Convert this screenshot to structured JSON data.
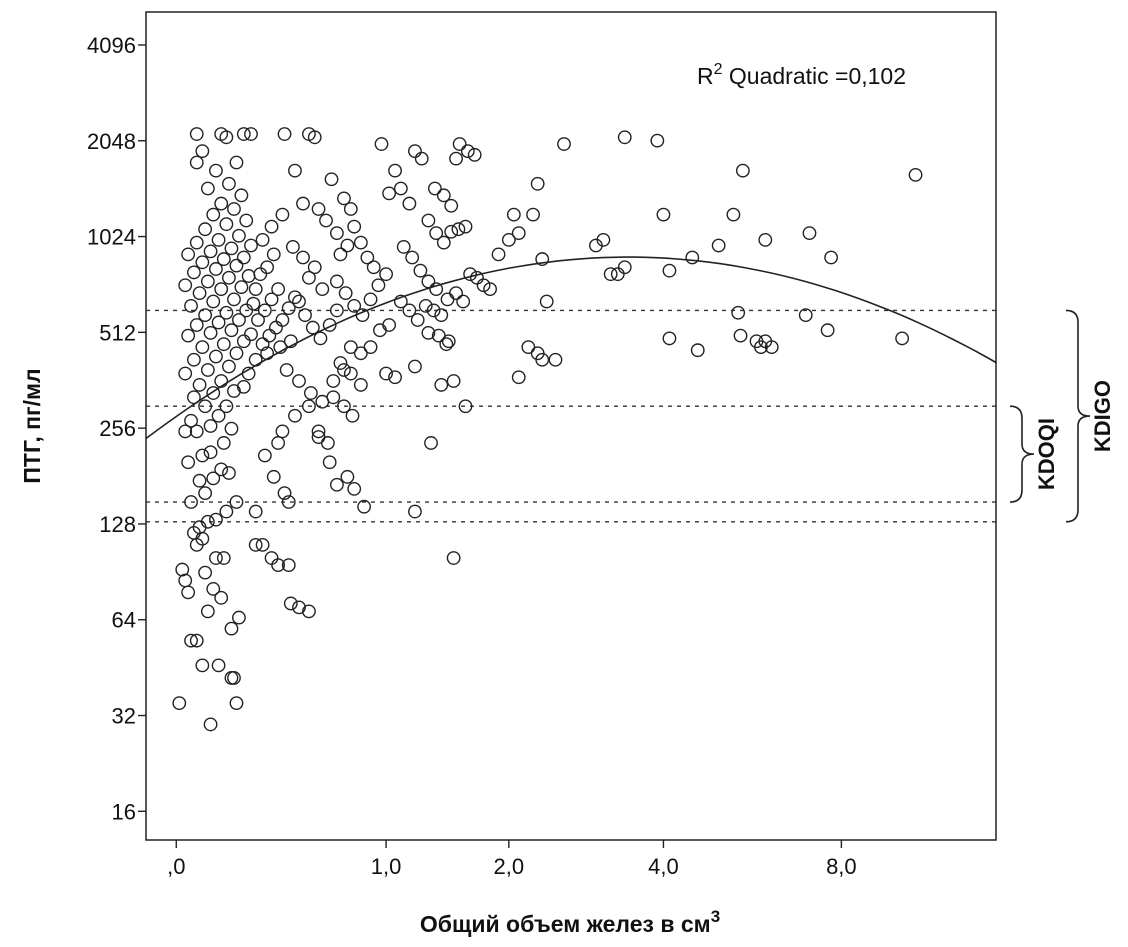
{
  "chart_data": {
    "type": "scatter",
    "xlabel": "Общий объем желез в см",
    "xlabel_sup": "3",
    "ylabel": "ПТГ, пг/мл",
    "y_scale": "log2",
    "x_scale": "log(1+x)",
    "xlim": [
      0,
      14
    ],
    "ylim": [
      13,
      5200
    ],
    "x_ticks": [
      0,
      1,
      2,
      4,
      8
    ],
    "x_tick_labels": [
      ",0",
      "1,0",
      "2,0",
      "4,0",
      "8,0"
    ],
    "y_ticks": [
      16,
      32,
      64,
      128,
      256,
      512,
      1024,
      2048,
      4096
    ],
    "y_tick_labels": [
      "16",
      "32",
      "64",
      "128",
      "256",
      "512",
      "1024",
      "2048",
      "4096"
    ],
    "annotation_main": "R",
    "annotation_sup": "2",
    "annotation_rest": " Quadratic =0,102",
    "reference_lines": [
      130,
      150,
      300,
      600
    ],
    "brackets": [
      {
        "label": "KDOQI",
        "range": [
          150,
          300
        ]
      },
      {
        "label": "KDIGO",
        "range": [
          130,
          600
        ]
      }
    ],
    "fit": {
      "type": "quadratic",
      "r2": 0.102,
      "color": "#222222"
    },
    "marker": {
      "shape": "circle",
      "fill": "none",
      "stroke": "#222222"
    },
    "grid": false,
    "points": [
      [
        0.01,
        35
      ],
      [
        0.03,
        85
      ],
      [
        0.04,
        78
      ],
      [
        0.02,
        92
      ],
      [
        0.05,
        55
      ],
      [
        0.07,
        55
      ],
      [
        0.09,
        46
      ],
      [
        0.12,
        30
      ],
      [
        0.15,
        46
      ],
      [
        0.2,
        42
      ],
      [
        0.21,
        42
      ],
      [
        0.22,
        35
      ],
      [
        0.2,
        60
      ],
      [
        0.23,
        65
      ],
      [
        0.11,
        68
      ],
      [
        0.16,
        75
      ],
      [
        0.13,
        80
      ],
      [
        0.1,
        90
      ],
      [
        0.14,
        100
      ],
      [
        0.17,
        100
      ],
      [
        0.07,
        110
      ],
      [
        0.09,
        115
      ],
      [
        0.06,
        120
      ],
      [
        0.08,
        125
      ],
      [
        0.11,
        130
      ],
      [
        0.14,
        132
      ],
      [
        0.18,
        140
      ],
      [
        0.05,
        150
      ],
      [
        0.1,
        160
      ],
      [
        0.22,
        150
      ],
      [
        0.08,
        175
      ],
      [
        0.13,
        178
      ],
      [
        0.16,
        190
      ],
      [
        0.19,
        185
      ],
      [
        0.04,
        200
      ],
      [
        0.09,
        210
      ],
      [
        0.12,
        215
      ],
      [
        0.17,
        230
      ],
      [
        0.03,
        250
      ],
      [
        0.07,
        250
      ],
      [
        0.12,
        260
      ],
      [
        0.2,
        255
      ],
      [
        0.05,
        270
      ],
      [
        0.15,
        280
      ],
      [
        0.1,
        300
      ],
      [
        0.18,
        300
      ],
      [
        0.06,
        320
      ],
      [
        0.13,
        330
      ],
      [
        0.21,
        335
      ],
      [
        0.08,
        350
      ],
      [
        0.16,
        360
      ],
      [
        0.25,
        345
      ],
      [
        0.03,
        380
      ],
      [
        0.11,
        390
      ],
      [
        0.19,
        400
      ],
      [
        0.27,
        380
      ],
      [
        0.06,
        420
      ],
      [
        0.14,
        430
      ],
      [
        0.22,
        440
      ],
      [
        0.09,
        460
      ],
      [
        0.17,
        470
      ],
      [
        0.25,
        480
      ],
      [
        0.04,
        500
      ],
      [
        0.12,
        510
      ],
      [
        0.2,
        520
      ],
      [
        0.28,
        505
      ],
      [
        0.07,
        540
      ],
      [
        0.15,
        550
      ],
      [
        0.23,
        560
      ],
      [
        0.1,
        580
      ],
      [
        0.18,
        590
      ],
      [
        0.26,
        600
      ],
      [
        0.05,
        620
      ],
      [
        0.13,
        640
      ],
      [
        0.21,
        650
      ],
      [
        0.29,
        630
      ],
      [
        0.08,
        680
      ],
      [
        0.16,
        700
      ],
      [
        0.24,
        710
      ],
      [
        0.03,
        720
      ],
      [
        0.11,
        740
      ],
      [
        0.19,
        760
      ],
      [
        0.27,
        770
      ],
      [
        0.06,
        790
      ],
      [
        0.14,
        810
      ],
      [
        0.22,
        830
      ],
      [
        0.09,
        850
      ],
      [
        0.17,
        870
      ],
      [
        0.25,
        880
      ],
      [
        0.04,
        900
      ],
      [
        0.12,
        920
      ],
      [
        0.2,
        940
      ],
      [
        0.28,
        960
      ],
      [
        0.07,
        980
      ],
      [
        0.15,
        1000
      ],
      [
        0.23,
        1030
      ],
      [
        0.1,
        1080
      ],
      [
        0.18,
        1120
      ],
      [
        0.26,
        1150
      ],
      [
        0.13,
        1200
      ],
      [
        0.21,
        1250
      ],
      [
        0.16,
        1300
      ],
      [
        0.24,
        1380
      ],
      [
        0.11,
        1450
      ],
      [
        0.19,
        1500
      ],
      [
        0.14,
        1650
      ],
      [
        0.07,
        1750
      ],
      [
        0.09,
        1900
      ],
      [
        0.16,
        2150
      ],
      [
        0.25,
        2150
      ],
      [
        0.07,
        2150
      ],
      [
        0.22,
        1750
      ],
      [
        0.3,
        700
      ],
      [
        0.32,
        780
      ],
      [
        0.35,
        820
      ],
      [
        0.38,
        900
      ],
      [
        0.31,
        560
      ],
      [
        0.34,
        600
      ],
      [
        0.37,
        650
      ],
      [
        0.4,
        700
      ],
      [
        0.33,
        470
      ],
      [
        0.36,
        500
      ],
      [
        0.39,
        530
      ],
      [
        0.42,
        560
      ],
      [
        0.45,
        610
      ],
      [
        0.48,
        660
      ],
      [
        0.3,
        420
      ],
      [
        0.35,
        440
      ],
      [
        0.41,
        460
      ],
      [
        0.46,
        480
      ],
      [
        0.33,
        1000
      ],
      [
        0.37,
        1100
      ],
      [
        0.42,
        1200
      ],
      [
        0.47,
        950
      ],
      [
        0.52,
        880
      ],
      [
        0.55,
        760
      ],
      [
        0.58,
        820
      ],
      [
        0.62,
        700
      ],
      [
        0.5,
        640
      ],
      [
        0.53,
        580
      ],
      [
        0.57,
        530
      ],
      [
        0.61,
        490
      ],
      [
        0.66,
        540
      ],
      [
        0.7,
        600
      ],
      [
        0.44,
        390
      ],
      [
        0.5,
        360
      ],
      [
        0.56,
        330
      ],
      [
        0.62,
        310
      ],
      [
        0.68,
        360
      ],
      [
        0.74,
        390
      ],
      [
        0.42,
        250
      ],
      [
        0.48,
        280
      ],
      [
        0.55,
        300
      ],
      [
        0.6,
        240
      ],
      [
        0.66,
        200
      ],
      [
        0.34,
        210
      ],
      [
        0.4,
        230
      ],
      [
        0.45,
        150
      ],
      [
        0.43,
        160
      ],
      [
        0.38,
        180
      ],
      [
        0.3,
        140
      ],
      [
        0.33,
        110
      ],
      [
        0.37,
        100
      ],
      [
        0.4,
        95
      ],
      [
        0.45,
        95
      ],
      [
        0.46,
        72
      ],
      [
        0.5,
        70
      ],
      [
        0.55,
        68
      ],
      [
        0.3,
        110
      ],
      [
        0.48,
        1650
      ],
      [
        0.52,
        1300
      ],
      [
        0.6,
        1250
      ],
      [
        0.64,
        1150
      ],
      [
        0.7,
        1050
      ],
      [
        0.72,
        900
      ],
      [
        0.76,
        960
      ],
      [
        0.8,
        1100
      ],
      [
        0.84,
        980
      ],
      [
        0.88,
        880
      ],
      [
        0.92,
        820
      ],
      [
        0.67,
        1550
      ],
      [
        0.74,
        1350
      ],
      [
        0.78,
        1250
      ],
      [
        0.7,
        740
      ],
      [
        0.75,
        680
      ],
      [
        0.8,
        620
      ],
      [
        0.85,
        580
      ],
      [
        0.9,
        650
      ],
      [
        0.95,
        720
      ],
      [
        1.0,
        780
      ],
      [
        0.78,
        460
      ],
      [
        0.84,
        440
      ],
      [
        0.9,
        460
      ],
      [
        0.96,
        520
      ],
      [
        1.02,
        540
      ],
      [
        0.72,
        410
      ],
      [
        0.78,
        380
      ],
      [
        0.84,
        350
      ],
      [
        0.68,
        320
      ],
      [
        0.74,
        300
      ],
      [
        0.79,
        280
      ],
      [
        0.6,
        250
      ],
      [
        0.65,
        230
      ],
      [
        0.7,
        170
      ],
      [
        0.76,
        180
      ],
      [
        0.8,
        165
      ],
      [
        0.86,
        145
      ],
      [
        0.58,
        2100
      ],
      [
        0.97,
        2000
      ],
      [
        1.06,
        1650
      ],
      [
        1.02,
        1400
      ],
      [
        1.1,
        1450
      ],
      [
        1.16,
        1300
      ],
      [
        1.2,
        1900
      ],
      [
        1.25,
        1800
      ],
      [
        1.12,
        950
      ],
      [
        1.18,
        880
      ],
      [
        1.24,
        800
      ],
      [
        1.3,
        740
      ],
      [
        1.36,
        700
      ],
      [
        1.1,
        640
      ],
      [
        1.16,
        600
      ],
      [
        1.22,
        560
      ],
      [
        1.28,
        620
      ],
      [
        1.34,
        600
      ],
      [
        1.4,
        580
      ],
      [
        1.3,
        510
      ],
      [
        1.38,
        500
      ],
      [
        1.44,
        470
      ],
      [
        1.2,
        400
      ],
      [
        1.0,
        380
      ],
      [
        1.06,
        370
      ],
      [
        1.32,
        230
      ],
      [
        1.2,
        140
      ],
      [
        1.3,
        1150
      ],
      [
        1.36,
        1050
      ],
      [
        1.42,
        980
      ],
      [
        1.48,
        1060
      ],
      [
        1.54,
        1080
      ],
      [
        1.6,
        1100
      ],
      [
        1.35,
        1450
      ],
      [
        1.42,
        1380
      ],
      [
        1.48,
        1280
      ],
      [
        1.55,
        2000
      ],
      [
        1.62,
        1900
      ],
      [
        1.68,
        1850
      ],
      [
        1.52,
        1800
      ],
      [
        1.45,
        650
      ],
      [
        1.52,
        680
      ],
      [
        1.58,
        640
      ],
      [
        1.64,
        780
      ],
      [
        1.7,
        760
      ],
      [
        1.76,
        720
      ],
      [
        1.82,
        700
      ],
      [
        1.4,
        350
      ],
      [
        1.5,
        360
      ],
      [
        1.6,
        300
      ],
      [
        1.5,
        100
      ],
      [
        1.46,
        480
      ],
      [
        1.9,
        900
      ],
      [
        2.0,
        1000
      ],
      [
        2.1,
        1050
      ],
      [
        2.05,
        1200
      ],
      [
        2.25,
        1200
      ],
      [
        2.3,
        1500
      ],
      [
        2.35,
        870
      ],
      [
        2.4,
        640
      ],
      [
        2.2,
        460
      ],
      [
        2.3,
        440
      ],
      [
        2.35,
        420
      ],
      [
        2.5,
        420
      ],
      [
        2.1,
        370
      ],
      [
        2.6,
        2000
      ],
      [
        3.0,
        960
      ],
      [
        3.1,
        1000
      ],
      [
        3.2,
        780
      ],
      [
        3.3,
        780
      ],
      [
        3.4,
        820
      ],
      [
        3.4,
        2100
      ],
      [
        3.9,
        2050
      ],
      [
        4.0,
        1200
      ],
      [
        4.1,
        800
      ],
      [
        4.1,
        490
      ],
      [
        4.5,
        880
      ],
      [
        4.6,
        450
      ],
      [
        5.0,
        960
      ],
      [
        5.3,
        1200
      ],
      [
        5.5,
        1650
      ],
      [
        5.4,
        590
      ],
      [
        5.45,
        500
      ],
      [
        5.8,
        480
      ],
      [
        5.9,
        460
      ],
      [
        6.0,
        480
      ],
      [
        6.15,
        460
      ],
      [
        6.0,
        1000
      ],
      [
        7.0,
        580
      ],
      [
        7.1,
        1050
      ],
      [
        7.7,
        880
      ],
      [
        7.6,
        520
      ],
      [
        10.5,
        1600
      ],
      [
        10.0,
        490
      ],
      [
        0.28,
        2150
      ],
      [
        0.43,
        2150
      ],
      [
        0.55,
        2150
      ],
      [
        0.18,
        2100
      ]
    ]
  }
}
